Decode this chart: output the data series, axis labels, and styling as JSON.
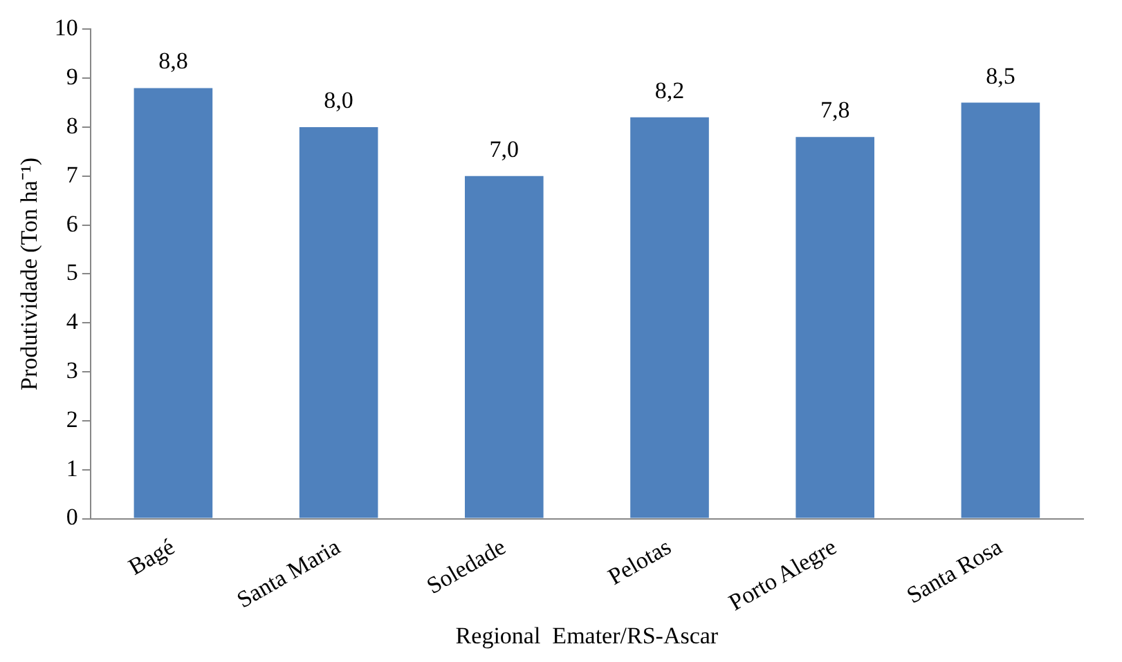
{
  "chart_data": {
    "type": "bar",
    "xlabel": "Regional  Emater/RS-Ascar",
    "ylabel": "Produtividade (Ton ha⁻¹)",
    "categories": [
      "Bagé",
      "Santa Maria",
      "Soledade",
      "Pelotas",
      "Porto Alegre",
      "Santa Rosa"
    ],
    "values": [
      8.8,
      8.0,
      7.0,
      8.2,
      7.8,
      8.5
    ],
    "value_labels": [
      "8,8",
      "8,0",
      "7,0",
      "8,2",
      "7,8",
      "8,5"
    ],
    "color": "#4f81bd",
    "ylim": [
      0,
      10
    ],
    "yticks": [
      0,
      1,
      2,
      3,
      4,
      5,
      6,
      7,
      8,
      9,
      10
    ],
    "grid": false,
    "legend": false
  }
}
